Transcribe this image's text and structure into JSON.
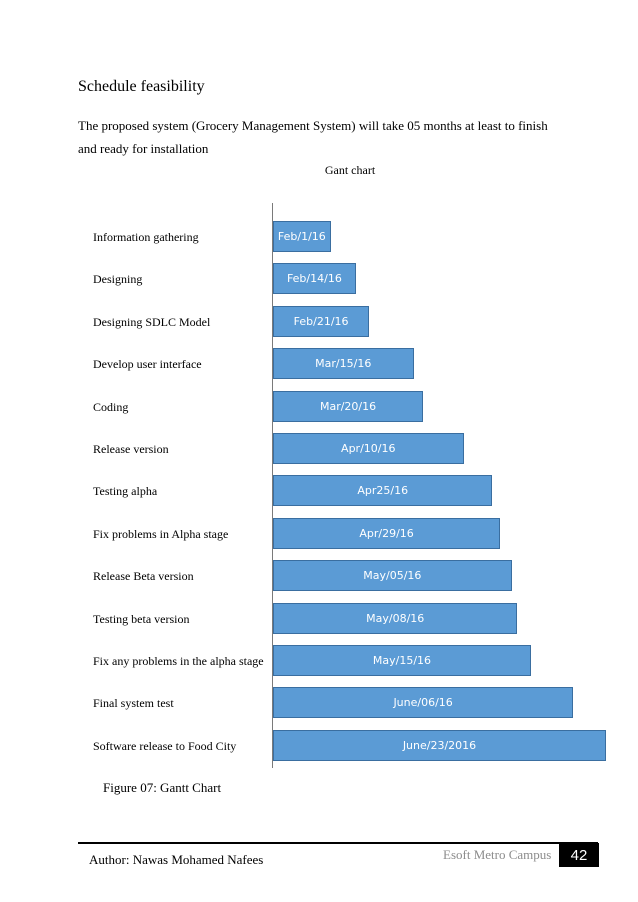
{
  "heading": "Schedule feasibility",
  "paragraph": "The proposed system (Grocery Management System) will take 05 months at least to finish and ready for installation",
  "chart_data": {
    "type": "bar",
    "title": "Gant chart",
    "orientation": "horizontal",
    "categories": [
      "Information gathering",
      "Designing",
      "Designing SDLC Model",
      "Develop user interface",
      "Coding",
      "Release version",
      "Testing alpha",
      "Fix problems in Alpha stage",
      "Release Beta version",
      "Testing beta version",
      "Fix any problems in the alpha stage",
      "Final system test",
      "Software release to Food City"
    ],
    "values": [
      "2016-02-01",
      "2016-02-14",
      "2016-02-21",
      "2016-03-15",
      "2016-03-20",
      "2016-04-10",
      "2016-04-25",
      "2016-04-29",
      "2016-05-05",
      "2016-05-08",
      "2016-05-15",
      "2016-06-06",
      "2016-06-23"
    ],
    "data_labels": [
      "Feb/1/16",
      "Feb/14/16",
      "Feb/21/16",
      "Mar/15/16",
      "Mar/20/16",
      "Apr/10/16",
      "Apr25/16",
      "Apr/29/16",
      "May/05/16",
      "May/08/16",
      "May/15/16",
      "June/06/16",
      "June/23/2016"
    ],
    "xlim": [
      "2016-01-02",
      "2016-06-23"
    ],
    "grid": false,
    "legend": "none"
  },
  "caption": "Figure 07: Gantt Chart",
  "footer": {
    "author": "Author: Nawas Mohamed Nafees",
    "campus": "Esoft Metro Campus",
    "page": "42"
  }
}
